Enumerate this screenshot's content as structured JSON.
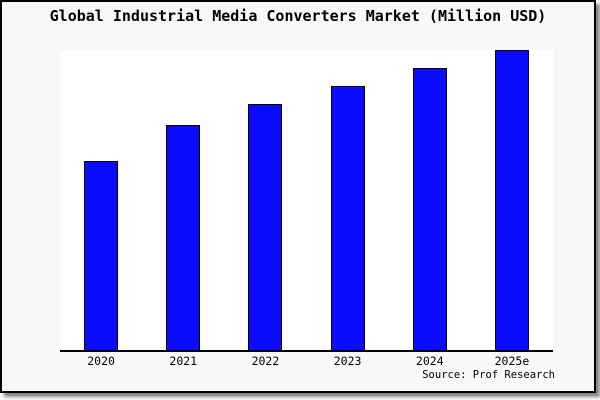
{
  "chart_data": {
    "type": "bar",
    "title": "Global Industrial Media Converters Market (Million USD)",
    "categories": [
      "2020",
      "2021",
      "2022",
      "2023",
      "2024",
      "2025e"
    ],
    "values": [
      63,
      75,
      82,
      88,
      94,
      100
    ],
    "xlabel": "",
    "ylabel": "",
    "ylim": [
      0,
      100
    ],
    "grid": false,
    "legend": false,
    "y_axis_labels_visible": false,
    "bar_color": "#0b0bff",
    "bar_edge_color": "#000000",
    "plot_background": "#ffffff",
    "figure_background": "#f8f8f8"
  },
  "source_note": "Source: Prof Research"
}
